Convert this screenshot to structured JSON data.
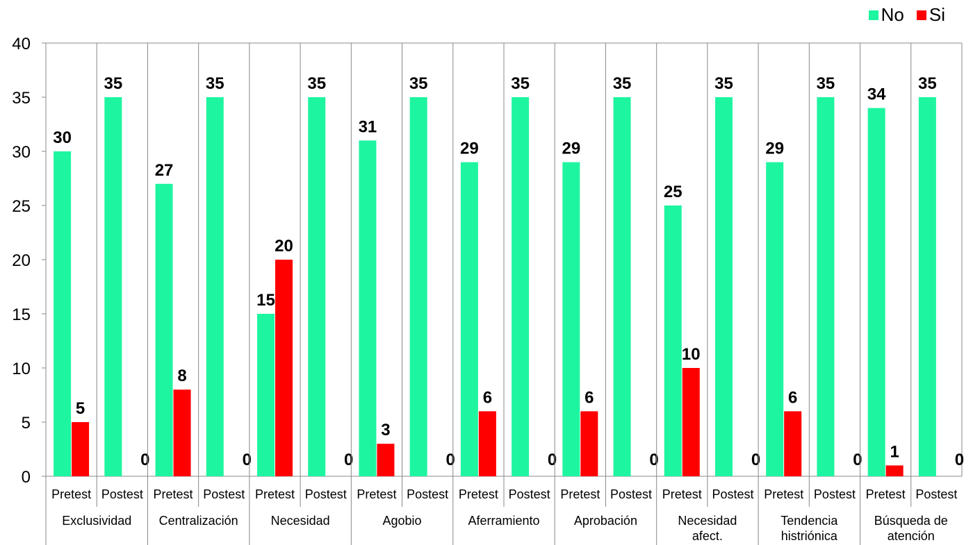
{
  "chart_data": {
    "type": "bar",
    "ylim": [
      0,
      40
    ],
    "yticks": [
      "0",
      "5",
      "10",
      "15",
      "20",
      "25",
      "30",
      "35",
      "40"
    ],
    "legend": {
      "position": "top-right"
    },
    "series": [
      {
        "name": "No",
        "color": "#1EF5A0"
      },
      {
        "name": "Si",
        "color": "#FF0000"
      }
    ],
    "groups": [
      {
        "label_lines": [
          "Exclusividad"
        ],
        "bars": [
          {
            "sub": "Pretest",
            "no": 30,
            "si": 5
          },
          {
            "sub": "Postest",
            "no": 35,
            "si": 0
          }
        ]
      },
      {
        "label_lines": [
          "Centralización"
        ],
        "bars": [
          {
            "sub": "Pretest",
            "no": 27,
            "si": 8
          },
          {
            "sub": "Postest",
            "no": 35,
            "si": 0
          }
        ]
      },
      {
        "label_lines": [
          "Necesidad"
        ],
        "bars": [
          {
            "sub": "Pretest",
            "no": 15,
            "si": 20
          },
          {
            "sub": "Postest",
            "no": 35,
            "si": 0
          }
        ]
      },
      {
        "label_lines": [
          "Agobio"
        ],
        "bars": [
          {
            "sub": "Pretest",
            "no": 31,
            "si": 3
          },
          {
            "sub": "Postest",
            "no": 35,
            "si": 0
          }
        ]
      },
      {
        "label_lines": [
          "Aferramiento"
        ],
        "bars": [
          {
            "sub": "Pretest",
            "no": 29,
            "si": 6
          },
          {
            "sub": "Postest",
            "no": 35,
            "si": 0
          }
        ]
      },
      {
        "label_lines": [
          "Aprobación"
        ],
        "bars": [
          {
            "sub": "Pretest",
            "no": 29,
            "si": 6
          },
          {
            "sub": "Postest",
            "no": 35,
            "si": 0
          }
        ]
      },
      {
        "label_lines": [
          "Necesidad",
          "afect."
        ],
        "bars": [
          {
            "sub": "Pretest",
            "no": 25,
            "si": 10
          },
          {
            "sub": "Postest",
            "no": 35,
            "si": 0
          }
        ]
      },
      {
        "label_lines": [
          "Tendencia",
          "histriónica"
        ],
        "bars": [
          {
            "sub": "Pretest",
            "no": 29,
            "si": 6
          },
          {
            "sub": "Postest",
            "no": 35,
            "si": 0
          }
        ]
      },
      {
        "label_lines": [
          "Búsqueda de",
          "atención"
        ],
        "bars": [
          {
            "sub": "Pretest",
            "no": 34,
            "si": 1
          },
          {
            "sub": "Postest",
            "no": 35,
            "si": 0
          }
        ]
      }
    ]
  }
}
